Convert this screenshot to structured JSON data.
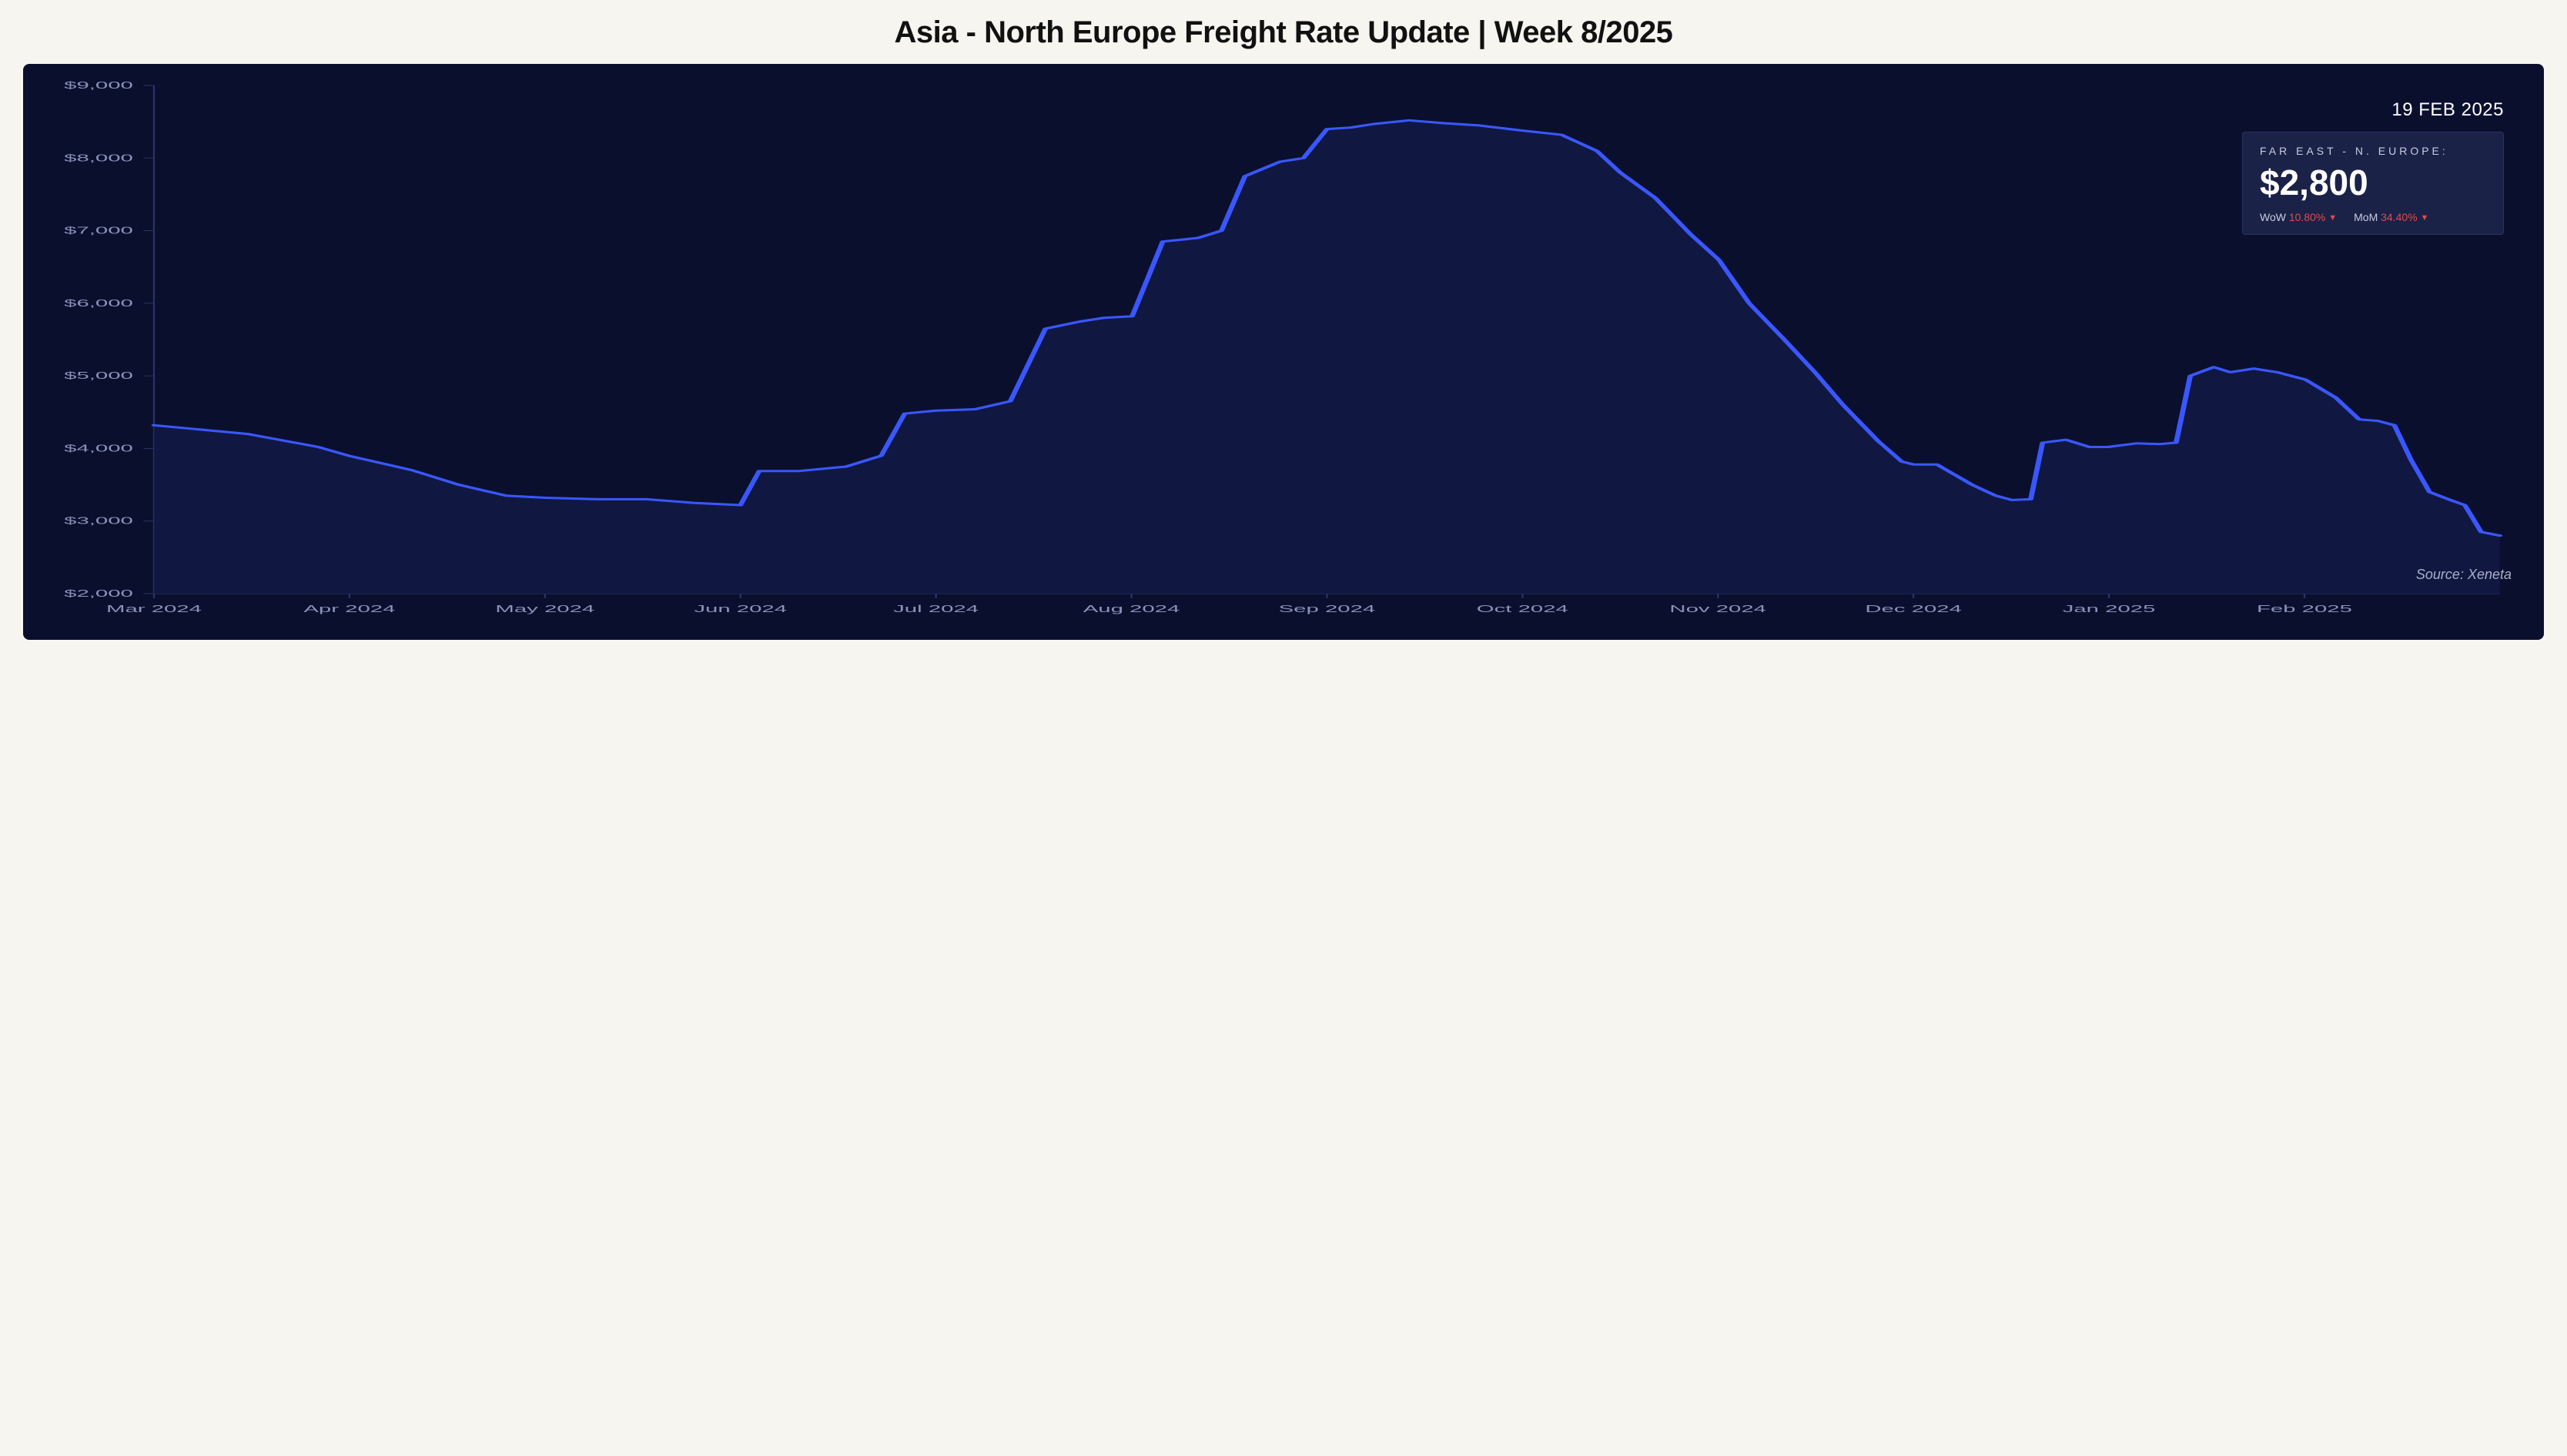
{
  "title": "Asia - North Europe Freight Rate Update | Week 8/2025",
  "date_label": "19 FEB 2025",
  "panel": {
    "route": "FAR EAST - N. EUROPE:",
    "value": "$2,800",
    "wow_label": "WoW",
    "wow_value": "10.80%",
    "mom_label": "MoM",
    "mom_value": "34.40%",
    "change_color": "#e04a4a"
  },
  "source": "Source: Xeneta",
  "chart": {
    "type": "line-area",
    "background_color": "#0a0f2e",
    "line_color": "#3a57ff",
    "area_color": "#111a44",
    "axis_text_color": "#8a93b8",
    "axis_line_color": "#2a3460",
    "line_width": 3,
    "y_axis": {
      "min": 2000,
      "max": 9000,
      "ticks": [
        2000,
        3000,
        4000,
        5000,
        6000,
        7000,
        8000,
        9000
      ],
      "tick_labels": [
        "$2,000",
        "$3,000",
        "$4,000",
        "$5,000",
        "$6,000",
        "$7,000",
        "$8,000",
        "$9,000"
      ]
    },
    "x_axis": {
      "labels": [
        "Mar 2024",
        "Apr 2024",
        "May 2024",
        "Jun 2024",
        "Jul 2024",
        "Aug 2024",
        "Sep 2024",
        "Oct 2024",
        "Nov 2024",
        "Dec 2024",
        "Jan 2025",
        "Feb 2025"
      ]
    },
    "series": [
      {
        "x": 0.0,
        "y": 4320
      },
      {
        "x": 0.04,
        "y": 4200
      },
      {
        "x": 0.07,
        "y": 4020
      },
      {
        "x": 0.083,
        "y": 3900
      },
      {
        "x": 0.11,
        "y": 3700
      },
      {
        "x": 0.13,
        "y": 3500
      },
      {
        "x": 0.15,
        "y": 3350
      },
      {
        "x": 0.167,
        "y": 3320
      },
      {
        "x": 0.19,
        "y": 3300
      },
      {
        "x": 0.21,
        "y": 3300
      },
      {
        "x": 0.23,
        "y": 3250
      },
      {
        "x": 0.25,
        "y": 3220
      },
      {
        "x": 0.258,
        "y": 3690
      },
      {
        "x": 0.275,
        "y": 3690
      },
      {
        "x": 0.295,
        "y": 3750
      },
      {
        "x": 0.31,
        "y": 3900
      },
      {
        "x": 0.32,
        "y": 4480
      },
      {
        "x": 0.333,
        "y": 4520
      },
      {
        "x": 0.35,
        "y": 4540
      },
      {
        "x": 0.365,
        "y": 4650
      },
      {
        "x": 0.38,
        "y": 5650
      },
      {
        "x": 0.395,
        "y": 5750
      },
      {
        "x": 0.405,
        "y": 5800
      },
      {
        "x": 0.417,
        "y": 5820
      },
      {
        "x": 0.43,
        "y": 6850
      },
      {
        "x": 0.445,
        "y": 6900
      },
      {
        "x": 0.455,
        "y": 7000
      },
      {
        "x": 0.465,
        "y": 7750
      },
      {
        "x": 0.48,
        "y": 7950
      },
      {
        "x": 0.49,
        "y": 8000
      },
      {
        "x": 0.5,
        "y": 8400
      },
      {
        "x": 0.51,
        "y": 8420
      },
      {
        "x": 0.52,
        "y": 8470
      },
      {
        "x": 0.535,
        "y": 8520
      },
      {
        "x": 0.55,
        "y": 8480
      },
      {
        "x": 0.565,
        "y": 8450
      },
      {
        "x": 0.583,
        "y": 8380
      },
      {
        "x": 0.6,
        "y": 8320
      },
      {
        "x": 0.615,
        "y": 8100
      },
      {
        "x": 0.625,
        "y": 7800
      },
      {
        "x": 0.64,
        "y": 7450
      },
      {
        "x": 0.655,
        "y": 6950
      },
      {
        "x": 0.667,
        "y": 6600
      },
      {
        "x": 0.68,
        "y": 6000
      },
      {
        "x": 0.695,
        "y": 5500
      },
      {
        "x": 0.708,
        "y": 5050
      },
      {
        "x": 0.72,
        "y": 4600
      },
      {
        "x": 0.735,
        "y": 4100
      },
      {
        "x": 0.745,
        "y": 3820
      },
      {
        "x": 0.75,
        "y": 3780
      },
      {
        "x": 0.76,
        "y": 3780
      },
      {
        "x": 0.775,
        "y": 3500
      },
      {
        "x": 0.785,
        "y": 3350
      },
      {
        "x": 0.792,
        "y": 3290
      },
      {
        "x": 0.8,
        "y": 3300
      },
      {
        "x": 0.805,
        "y": 4080
      },
      {
        "x": 0.815,
        "y": 4120
      },
      {
        "x": 0.825,
        "y": 4020
      },
      {
        "x": 0.833,
        "y": 4020
      },
      {
        "x": 0.845,
        "y": 4070
      },
      {
        "x": 0.855,
        "y": 4060
      },
      {
        "x": 0.862,
        "y": 4080
      },
      {
        "x": 0.868,
        "y": 5000
      },
      {
        "x": 0.878,
        "y": 5120
      },
      {
        "x": 0.885,
        "y": 5050
      },
      {
        "x": 0.895,
        "y": 5100
      },
      {
        "x": 0.905,
        "y": 5050
      },
      {
        "x": 0.917,
        "y": 4950
      },
      {
        "x": 0.93,
        "y": 4700
      },
      {
        "x": 0.94,
        "y": 4400
      },
      {
        "x": 0.948,
        "y": 4380
      },
      {
        "x": 0.955,
        "y": 4320
      },
      {
        "x": 0.962,
        "y": 3850
      },
      {
        "x": 0.97,
        "y": 3400
      },
      {
        "x": 0.978,
        "y": 3300
      },
      {
        "x": 0.985,
        "y": 3220
      },
      {
        "x": 0.992,
        "y": 2850
      },
      {
        "x": 1.0,
        "y": 2800
      }
    ]
  }
}
